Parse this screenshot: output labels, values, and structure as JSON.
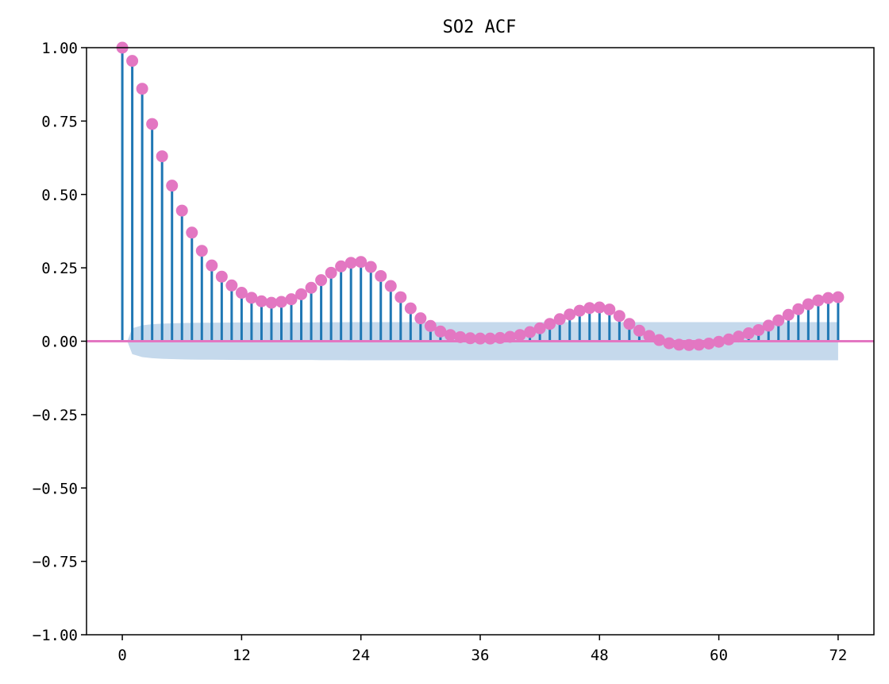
{
  "chart_data": {
    "type": "stem",
    "title": "SO2 ACF",
    "xlabel": "",
    "ylabel": "",
    "xlim": [
      -3.6,
      75.6
    ],
    "ylim": [
      -1.0,
      1.0
    ],
    "xticks": [
      0,
      12,
      24,
      36,
      48,
      60,
      72
    ],
    "xtick_labels": [
      "0",
      "12",
      "24",
      "36",
      "48",
      "60",
      "72"
    ],
    "yticks": [
      1.0,
      0.75,
      0.5,
      0.25,
      0.0,
      -0.25,
      -0.5,
      -0.75,
      -1.0
    ],
    "ytick_labels": [
      "1.00",
      "0.75",
      "0.50",
      "0.25",
      "0.00",
      "−0.25",
      "−0.50",
      "−0.75",
      "−1.00"
    ],
    "grid": false,
    "series": [
      {
        "values": [
          1.0,
          0.955,
          0.86,
          0.74,
          0.63,
          0.53,
          0.445,
          0.37,
          0.308,
          0.258,
          0.22,
          0.19,
          0.165,
          0.148,
          0.136,
          0.131,
          0.134,
          0.143,
          0.16,
          0.182,
          0.208,
          0.233,
          0.255,
          0.267,
          0.27,
          0.253,
          0.222,
          0.188,
          0.15,
          0.112,
          0.078,
          0.052,
          0.033,
          0.021,
          0.014,
          0.01,
          0.009,
          0.009,
          0.011,
          0.015,
          0.021,
          0.031,
          0.044,
          0.059,
          0.075,
          0.091,
          0.104,
          0.113,
          0.115,
          0.108,
          0.086,
          0.059,
          0.036,
          0.018,
          0.004,
          -0.007,
          -0.012,
          -0.013,
          -0.012,
          -0.008,
          -0.002,
          0.006,
          0.016,
          0.027,
          0.038,
          0.053,
          0.071,
          0.09,
          0.109,
          0.126,
          0.139,
          0.147,
          0.15
        ],
        "stem_color": "#1f77b4",
        "marker_color": "#e377c2"
      }
    ],
    "confidence_band_upper": [
      0.0,
      0.044,
      0.054,
      0.058,
      0.06,
      0.061,
      0.062,
      0.0625,
      0.063,
      0.063,
      0.0633,
      0.0636,
      0.064,
      0.064,
      0.064,
      0.064,
      0.064,
      0.064,
      0.064,
      0.064,
      0.0645,
      0.0645,
      0.0645,
      0.065,
      0.065,
      0.065,
      0.065,
      0.065,
      0.065,
      0.065,
      0.065,
      0.065,
      0.065,
      0.065,
      0.065,
      0.065,
      0.065,
      0.065,
      0.065,
      0.065,
      0.065,
      0.065,
      0.065,
      0.065,
      0.065,
      0.065,
      0.065,
      0.065,
      0.065,
      0.065,
      0.065,
      0.065,
      0.065,
      0.065,
      0.065,
      0.065,
      0.065,
      0.065,
      0.065,
      0.065,
      0.065,
      0.065,
      0.065,
      0.065,
      0.065,
      0.065,
      0.065,
      0.065,
      0.065,
      0.065,
      0.065,
      0.065,
      0.065
    ],
    "confidence_band_color": "#c5d9ec",
    "zero_line_color": "#e377c2"
  }
}
